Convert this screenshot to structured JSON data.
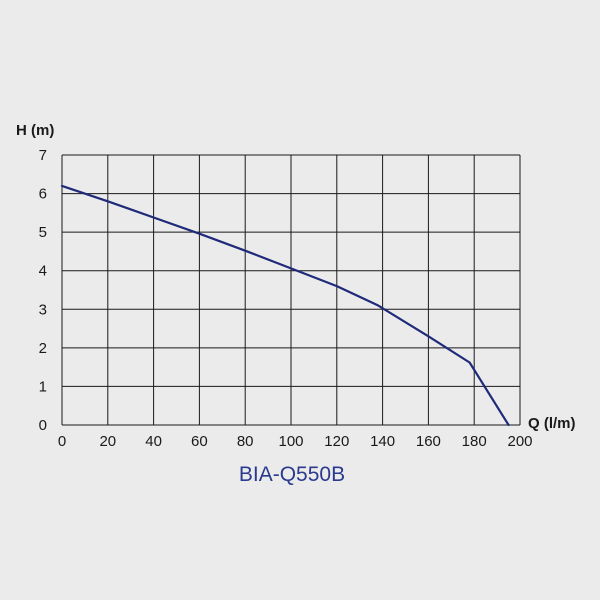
{
  "chart_data": {
    "type": "line",
    "title": "",
    "xlabel": "Q (l/m)",
    "ylabel": "H (m)",
    "model_label": "BIA-Q550B",
    "xlim": [
      0,
      200
    ],
    "ylim": [
      0,
      7
    ],
    "x_ticks": [
      0,
      20,
      40,
      60,
      80,
      100,
      120,
      140,
      160,
      180,
      200
    ],
    "y_ticks": [
      0,
      1,
      2,
      3,
      4,
      5,
      6,
      7
    ],
    "grid": true,
    "series": [
      {
        "x": [
          0,
          20,
          40,
          60,
          80,
          100,
          120,
          138,
          160,
          178,
          195
        ],
        "y": [
          6.2,
          5.8,
          5.38,
          4.96,
          4.52,
          4.06,
          3.6,
          3.1,
          2.3,
          1.62,
          0.0
        ]
      }
    ]
  },
  "colors": {
    "background": "#ebebeb",
    "grid": "#1a1a1a",
    "curve": "#1f2a7a",
    "model_label": "#2b3a8f"
  }
}
